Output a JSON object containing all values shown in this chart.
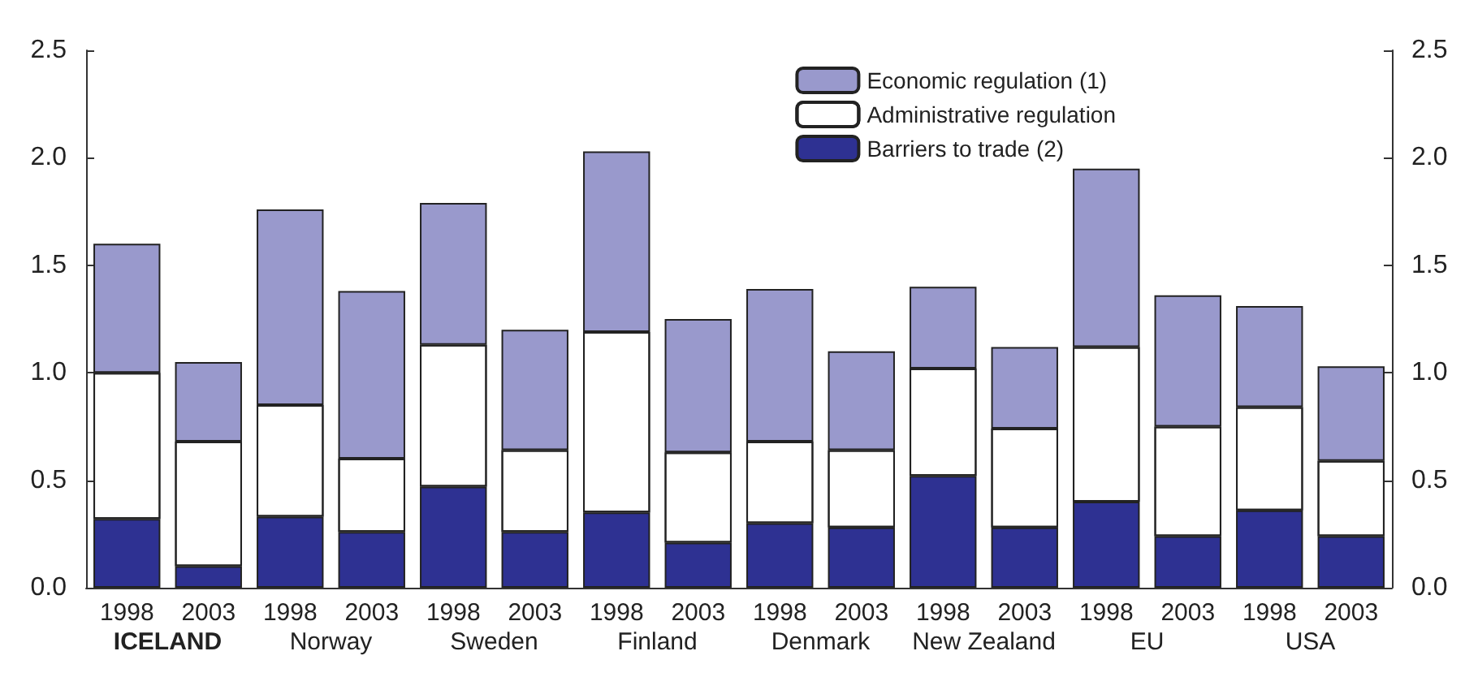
{
  "chart_data": {
    "type": "bar",
    "stacked": true,
    "categories": [
      "1998",
      "2003",
      "1998",
      "2003",
      "1998",
      "2003",
      "1998",
      "2003",
      "1998",
      "2003",
      "1998",
      "2003",
      "1998",
      "2003",
      "1998",
      "2003"
    ],
    "annotations": [
      "ICELAND",
      "Norway",
      "Sweden",
      "Finland",
      "Denmark",
      "New Zealand",
      "EU",
      "USA"
    ],
    "series": [
      {
        "name": "Barriers to trade (2)",
        "color": "#2e3192",
        "values": [
          0.32,
          0.1,
          0.33,
          0.26,
          0.47,
          0.26,
          0.35,
          0.21,
          0.3,
          0.28,
          0.52,
          0.28,
          0.4,
          0.24,
          0.36,
          0.24
        ]
      },
      {
        "name": "Administrative regulation",
        "color": "#ffffff",
        "values": [
          0.68,
          0.58,
          0.52,
          0.34,
          0.66,
          0.38,
          0.84,
          0.42,
          0.38,
          0.36,
          0.5,
          0.46,
          0.72,
          0.51,
          0.48,
          0.35
        ]
      },
      {
        "name": "Economic regulation (1)",
        "color": "#9999cc",
        "values": [
          0.6,
          0.37,
          0.91,
          0.78,
          0.66,
          0.56,
          0.84,
          0.62,
          0.71,
          0.46,
          0.38,
          0.38,
          0.83,
          0.61,
          0.47,
          0.44
        ]
      }
    ],
    "ylim": [
      0,
      2.5
    ],
    "yticks": [
      {
        "value": 0,
        "label": "0.0"
      },
      {
        "value": 0.5,
        "label": "0.5"
      },
      {
        "value": 1,
        "label": "1.0"
      },
      {
        "value": 1.5,
        "label": "1.5"
      },
      {
        "value": 2,
        "label": "2.0"
      },
      {
        "value": 2.5,
        "label": "2.5"
      }
    ],
    "y2lim": [
      0,
      2.5
    ],
    "y2ticks": [
      {
        "value": 0,
        "label": "0.0"
      },
      {
        "value": 0.5,
        "label": "0.5"
      },
      {
        "value": 1,
        "label": "1.0"
      },
      {
        "value": 1.5,
        "label": "1.5"
      },
      {
        "value": 2,
        "label": "2.0"
      },
      {
        "value": 2.5,
        "label": "2.5"
      }
    ],
    "legend": "top right",
    "grid": false
  }
}
